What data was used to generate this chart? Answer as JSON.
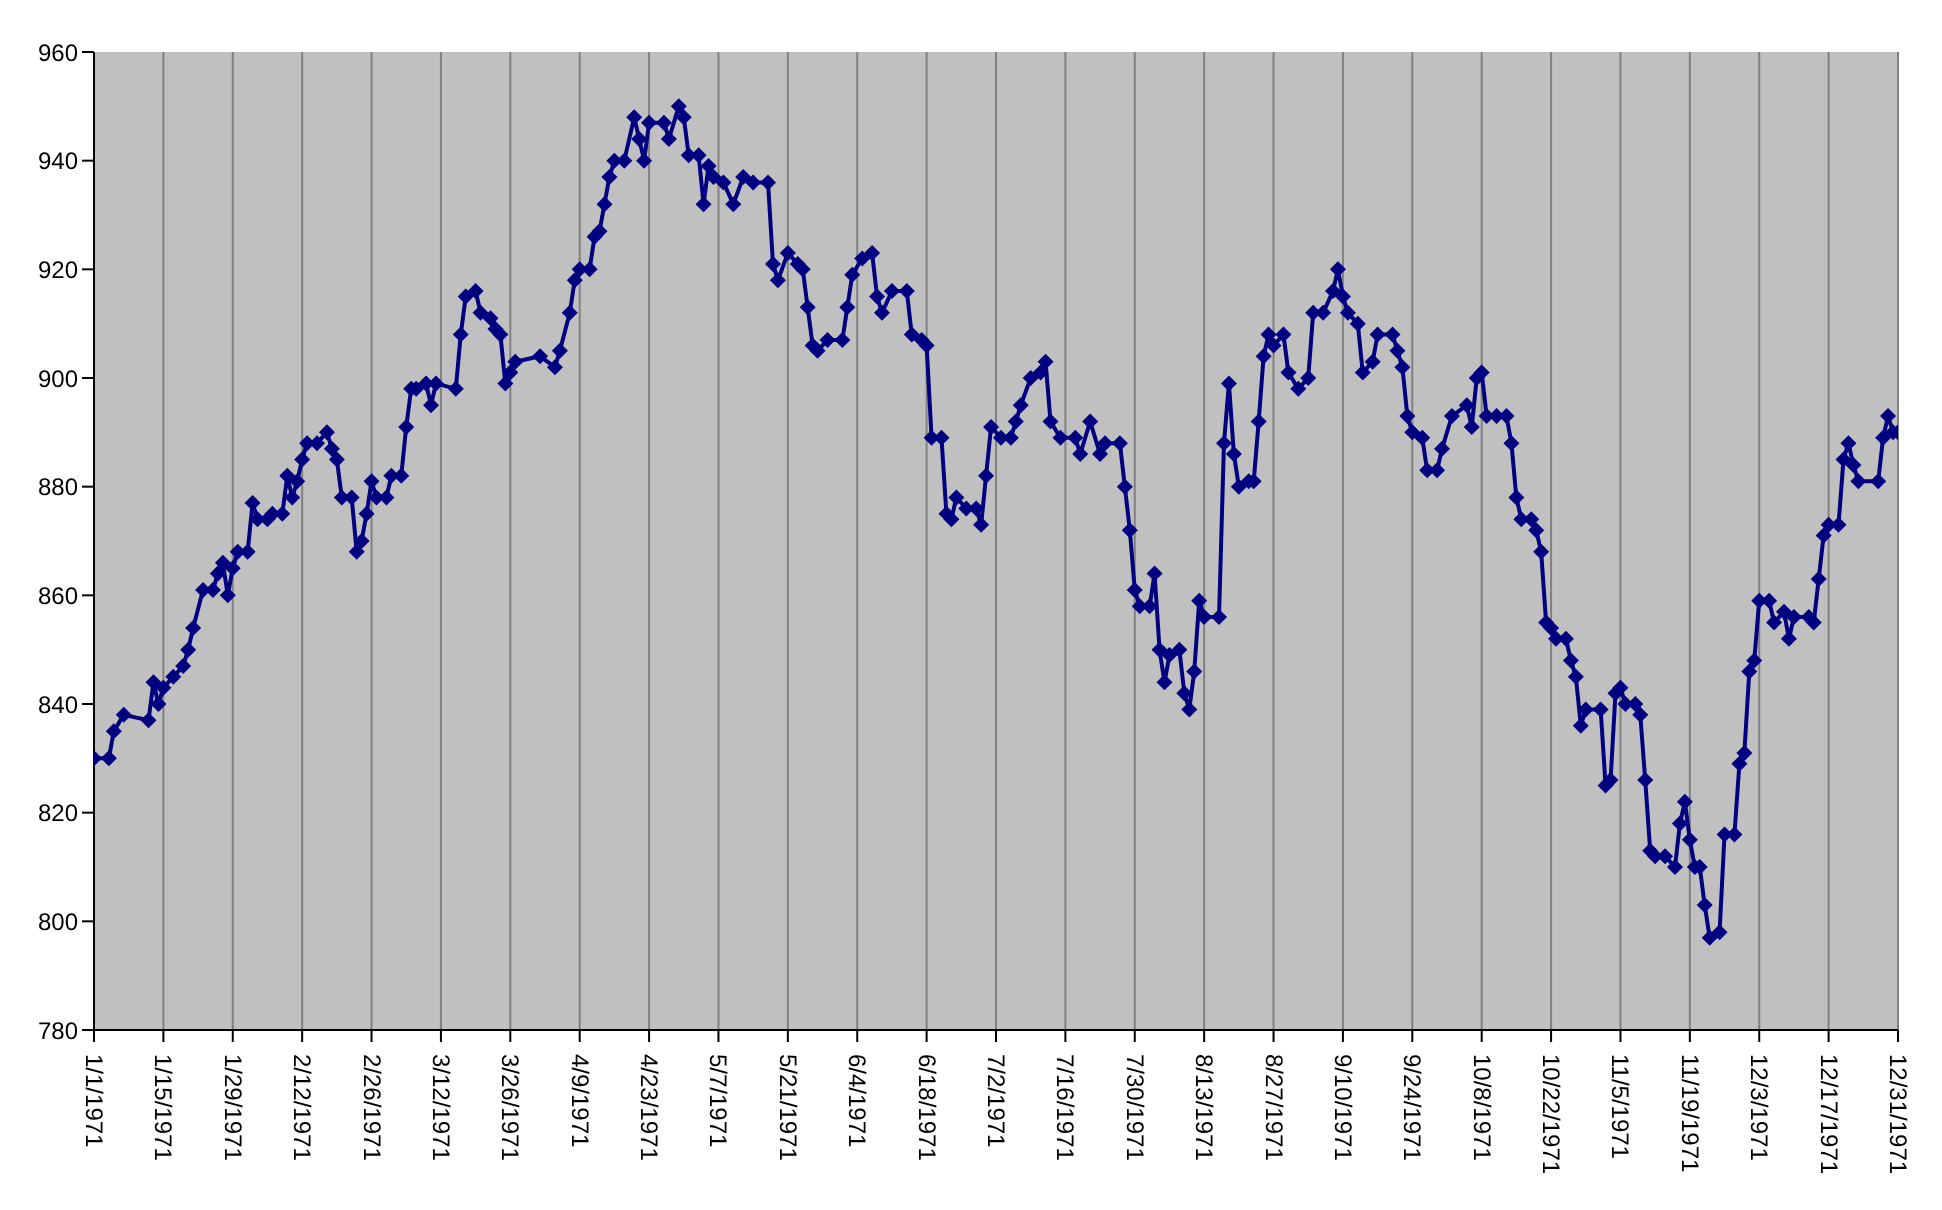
{
  "chart_data": {
    "type": "line",
    "marker": "diamond",
    "grid": "x",
    "xlim": [
      "1971-01-01",
      "1971-12-31"
    ],
    "xticks": [
      {
        "value": "1971-01-01",
        "label": "1/1/1971"
      },
      {
        "value": "1971-01-15",
        "label": "1/15/1971"
      },
      {
        "value": "1971-01-29",
        "label": "1/29/1971"
      },
      {
        "value": "1971-02-12",
        "label": "2/12/1971"
      },
      {
        "value": "1971-02-26",
        "label": "2/26/1971"
      },
      {
        "value": "1971-03-12",
        "label": "3/12/1971"
      },
      {
        "value": "1971-03-26",
        "label": "3/26/1971"
      },
      {
        "value": "1971-04-09",
        "label": "4/9/1971"
      },
      {
        "value": "1971-04-23",
        "label": "4/23/1971"
      },
      {
        "value": "1971-05-07",
        "label": "5/7/1971"
      },
      {
        "value": "1971-05-21",
        "label": "5/21/1971"
      },
      {
        "value": "1971-06-04",
        "label": "6/4/1971"
      },
      {
        "value": "1971-06-18",
        "label": "6/18/1971"
      },
      {
        "value": "1971-07-02",
        "label": "7/2/1971"
      },
      {
        "value": "1971-07-16",
        "label": "7/16/1971"
      },
      {
        "value": "1971-07-30",
        "label": "7/30/1971"
      },
      {
        "value": "1971-08-13",
        "label": "8/13/1971"
      },
      {
        "value": "1971-08-27",
        "label": "8/27/1971"
      },
      {
        "value": "1971-09-10",
        "label": "9/10/1971"
      },
      {
        "value": "1971-09-24",
        "label": "9/24/1971"
      },
      {
        "value": "1971-10-08",
        "label": "10/8/1971"
      },
      {
        "value": "1971-10-22",
        "label": "10/22/1971"
      },
      {
        "value": "1971-11-05",
        "label": "11/5/1971"
      },
      {
        "value": "1971-11-19",
        "label": "11/19/1971"
      },
      {
        "value": "1971-12-03",
        "label": "12/3/1971"
      },
      {
        "value": "1971-12-17",
        "label": "12/17/1971"
      },
      {
        "value": "1971-12-31",
        "label": "12/31/1971"
      }
    ],
    "ylim": [
      780,
      960
    ],
    "yticks": [
      780,
      800,
      820,
      840,
      860,
      880,
      900,
      920,
      940,
      960
    ],
    "x": [
      "1971-01-01",
      "1971-01-04",
      "1971-01-05",
      "1971-01-07",
      "1971-01-12",
      "1971-01-13",
      "1971-01-14",
      "1971-01-15",
      "1971-01-17",
      "1971-01-19",
      "1971-01-20",
      "1971-01-21",
      "1971-01-23",
      "1971-01-25",
      "1971-01-26",
      "1971-01-27",
      "1971-01-28",
      "1971-01-29",
      "1971-01-30",
      "1971-02-01",
      "1971-02-02",
      "1971-02-03",
      "1971-02-05",
      "1971-02-06",
      "1971-02-08",
      "1971-02-09",
      "1971-02-10",
      "1971-02-11",
      "1971-02-12",
      "1971-02-13",
      "1971-02-15",
      "1971-02-17",
      "1971-02-18",
      "1971-02-19",
      "1971-02-20",
      "1971-02-22",
      "1971-02-23",
      "1971-02-24",
      "1971-02-25",
      "1971-02-26",
      "1971-02-27",
      "1971-03-01",
      "1971-03-02",
      "1971-03-04",
      "1971-03-05",
      "1971-03-06",
      "1971-03-07",
      "1971-03-09",
      "1971-03-10",
      "1971-03-11",
      "1971-03-15",
      "1971-03-16",
      "1971-03-17",
      "1971-03-19",
      "1971-03-20",
      "1971-03-22",
      "1971-03-23",
      "1971-03-24",
      "1971-03-25",
      "1971-03-26",
      "1971-03-27",
      "1971-04-01",
      "1971-04-04",
      "1971-04-05",
      "1971-04-07",
      "1971-04-08",
      "1971-04-09",
      "1971-04-11",
      "1971-04-12",
      "1971-04-13",
      "1971-04-14",
      "1971-04-15",
      "1971-04-16",
      "1971-04-18",
      "1971-04-20",
      "1971-04-21",
      "1971-04-22",
      "1971-04-23",
      "1971-04-26",
      "1971-04-27",
      "1971-04-29",
      "1971-04-30",
      "1971-05-01",
      "1971-05-03",
      "1971-05-04",
      "1971-05-05",
      "1971-05-06",
      "1971-05-08",
      "1971-05-10",
      "1971-05-12",
      "1971-05-14",
      "1971-05-17",
      "1971-05-18",
      "1971-05-19",
      "1971-05-21",
      "1971-05-23",
      "1971-05-24",
      "1971-05-25",
      "1971-05-26",
      "1971-05-27",
      "1971-05-29",
      "1971-06-01",
      "1971-06-02",
      "1971-06-03",
      "1971-06-05",
      "1971-06-07",
      "1971-06-08",
      "1971-06-09",
      "1971-06-11",
      "1971-06-14",
      "1971-06-15",
      "1971-06-17",
      "1971-06-18",
      "1971-06-19",
      "1971-06-21",
      "1971-06-22",
      "1971-06-23",
      "1971-06-24",
      "1971-06-26",
      "1971-06-28",
      "1971-06-29",
      "1971-06-30",
      "1971-07-01",
      "1971-07-03",
      "1971-07-05",
      "1971-07-06",
      "1971-07-07",
      "1971-07-09",
      "1971-07-11",
      "1971-07-12",
      "1971-07-13",
      "1971-07-15",
      "1971-07-18",
      "1971-07-19",
      "1971-07-21",
      "1971-07-23",
      "1971-07-24",
      "1971-07-27",
      "1971-07-28",
      "1971-07-29",
      "1971-07-30",
      "1971-07-31",
      "1971-08-02",
      "1971-08-03",
      "1971-08-04",
      "1971-08-05",
      "1971-08-06",
      "1971-08-08",
      "1971-08-09",
      "1971-08-10",
      "1971-08-11",
      "1971-08-12",
      "1971-08-13",
      "1971-08-16",
      "1971-08-17",
      "1971-08-18",
      "1971-08-19",
      "1971-08-20",
      "1971-08-22",
      "1971-08-23",
      "1971-08-24",
      "1971-08-25",
      "1971-08-26",
      "1971-08-27",
      "1971-08-29",
      "1971-08-30",
      "1971-09-01",
      "1971-09-03",
      "1971-09-04",
      "1971-09-06",
      "1971-09-08",
      "1971-09-09",
      "1971-09-10",
      "1971-09-11",
      "1971-09-13",
      "1971-09-14",
      "1971-09-16",
      "1971-09-17",
      "1971-09-20",
      "1971-09-21",
      "1971-09-22",
      "1971-09-23",
      "1971-09-24",
      "1971-09-26",
      "1971-09-27",
      "1971-09-29",
      "1971-09-30",
      "1971-10-02",
      "1971-10-05",
      "1971-10-06",
      "1971-10-07",
      "1971-10-08",
      "1971-10-09",
      "1971-10-11",
      "1971-10-13",
      "1971-10-14",
      "1971-10-15",
      "1971-10-16",
      "1971-10-18",
      "1971-10-19",
      "1971-10-20",
      "1971-10-21",
      "1971-10-22",
      "1971-10-23",
      "1971-10-25",
      "1971-10-26",
      "1971-10-27",
      "1971-10-28",
      "1971-10-29",
      "1971-11-01",
      "1971-11-02",
      "1971-11-03",
      "1971-11-04",
      "1971-11-05",
      "1971-11-06",
      "1971-11-08",
      "1971-11-09",
      "1971-11-10",
      "1971-11-11",
      "1971-11-12",
      "1971-11-14",
      "1971-11-16",
      "1971-11-17",
      "1971-11-18",
      "1971-11-19",
      "1971-11-20",
      "1971-11-21",
      "1971-11-22",
      "1971-11-23",
      "1971-11-25",
      "1971-11-26",
      "1971-11-28",
      "1971-11-29",
      "1971-11-30",
      "1971-12-01",
      "1971-12-02",
      "1971-12-03",
      "1971-12-05",
      "1971-12-06",
      "1971-12-08",
      "1971-12-09",
      "1971-12-10",
      "1971-12-13",
      "1971-12-14",
      "1971-12-15",
      "1971-12-16",
      "1971-12-17",
      "1971-12-19",
      "1971-12-20",
      "1971-12-21",
      "1971-12-22",
      "1971-12-23",
      "1971-12-27",
      "1971-12-28",
      "1971-12-29",
      "1971-12-30",
      "1971-12-31"
    ],
    "series": [
      {
        "color": "#000080",
        "values": [
          830,
          830,
          835,
          838,
          837,
          844,
          840,
          843,
          845,
          847,
          850,
          854,
          861,
          861,
          864,
          866,
          860,
          865,
          868,
          868,
          877,
          874,
          874,
          875,
          875,
          882,
          878,
          881,
          885,
          888,
          888,
          890,
          887,
          885,
          878,
          878,
          868,
          870,
          875,
          881,
          878,
          878,
          882,
          882,
          891,
          898,
          898,
          899,
          895,
          899,
          898,
          908,
          915,
          916,
          912,
          911,
          909,
          908,
          899,
          901,
          903,
          904,
          902,
          905,
          912,
          918,
          920,
          920,
          926,
          927,
          932,
          937,
          940,
          940,
          948,
          944,
          940,
          947,
          947,
          944,
          950,
          948,
          941,
          941,
          932,
          939,
          937,
          936,
          932,
          937,
          936,
          936,
          921,
          918,
          923,
          921,
          920,
          913,
          906,
          905,
          907,
          907,
          913,
          919,
          922,
          923,
          915,
          912,
          916,
          916,
          908,
          907,
          906,
          889,
          889,
          875,
          874,
          878,
          876,
          876,
          873,
          882,
          891,
          889,
          889,
          892,
          895,
          900,
          901,
          903,
          892,
          889,
          889,
          886,
          892,
          886,
          888,
          888,
          880,
          872,
          861,
          858,
          858,
          864,
          850,
          844,
          849,
          850,
          842,
          839,
          846,
          859,
          856,
          856,
          888,
          899,
          886,
          880,
          881,
          881,
          892,
          904,
          908,
          906,
          908,
          901,
          898,
          900,
          912,
          912,
          916,
          920,
          915,
          912,
          910,
          901,
          903,
          908,
          908,
          905,
          902,
          893,
          890,
          889,
          883,
          883,
          887,
          893,
          895,
          891,
          900,
          901,
          893,
          893,
          893,
          888,
          878,
          874,
          874,
          872,
          868,
          855,
          854,
          852,
          852,
          848,
          845,
          836,
          839,
          839,
          825,
          826,
          842,
          843,
          840,
          840,
          838,
          826,
          813,
          812,
          812,
          810,
          818,
          822,
          815,
          810,
          810,
          803,
          797,
          798,
          816,
          816,
          829,
          831,
          846,
          848,
          859,
          859,
          855,
          857,
          852,
          856,
          856,
          855,
          863,
          871,
          873,
          873,
          885,
          888,
          884,
          881,
          881,
          889,
          893,
          890,
          890
        ]
      }
    ]
  }
}
